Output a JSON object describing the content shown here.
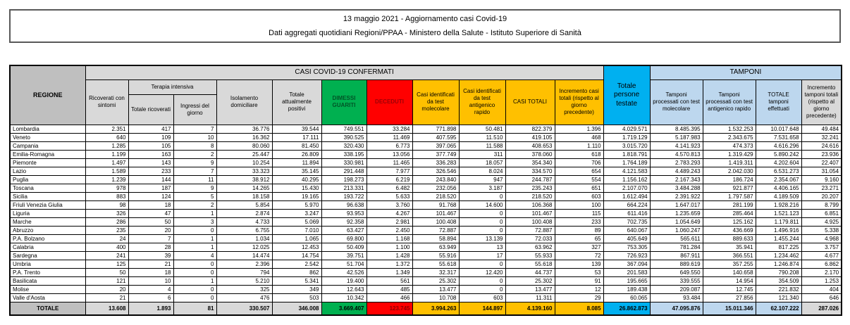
{
  "title": {
    "line1": "13 maggio 2021 - Aggiornamento casi Covid-19",
    "line2": "Dati aggregati quotidiani Regioni/PPAA - Ministero della Salute - Istituto Superiore di Sanità"
  },
  "colors": {
    "green": "#00B050",
    "red": "#FF0000",
    "amber": "#FFC000",
    "cyan": "#00B0F0",
    "blue_light": "#BDD7EE",
    "grey_dark": "#BFBFBF",
    "grey_light": "#D9D9D9"
  },
  "table": {
    "headers": {
      "regione": "REGIONE",
      "band_confermati": "CASI COVID-19 CONFERMATI",
      "band_tamponi": "TAMPONI",
      "ricoverati": "Ricoverati con sintomi",
      "terapia_intensiva": "Terapia intensiva",
      "totale_ricoverati": "Totale ricoverati",
      "ingressi_giorno": "Ingressi del giorno",
      "isolamento": "Isolamento domiciliare",
      "attualmente_positivi": "Totale attualmente positivi",
      "dimessi_guariti": "DIMESSI GUARITI",
      "deceduti": "DECEDUTI",
      "casi_molecolare": "Casi identificati da test molecolare",
      "casi_antigenico": "Casi identificati da test antigenico rapido",
      "casi_totali": "CASI TOTALI",
      "incremento_casi": "Incremento casi totali (rispetto al giorno precedente)",
      "persone_testate": "Totale persone testate",
      "tamponi_molecolare": "Tamponi processati con test molecolare",
      "tamponi_antigenico": "Tamponi processati con test antigenico rapido",
      "totale_tamponi": "TOTALE tamponi effettuati",
      "incremento_tamponi": "Incremento tamponi totali (rispetto al giorno precedente)"
    },
    "rows": [
      {
        "region": "Lombardia",
        "values": [
          "2.351",
          "417",
          "7",
          "36.776",
          "39.544",
          "749.551",
          "33.284",
          "771.898",
          "50.481",
          "822.379",
          "1.396",
          "4.029.571",
          "8.485.395",
          "1.532.253",
          "10.017.648",
          "49.484"
        ]
      },
      {
        "region": "Veneto",
        "values": [
          "640",
          "109",
          "10",
          "16.362",
          "17.111",
          "390.525",
          "11.469",
          "407.595",
          "11.510",
          "419.105",
          "468",
          "1.719.129",
          "5.187.983",
          "2.343.675",
          "7.531.658",
          "32.241"
        ]
      },
      {
        "region": "Campania",
        "values": [
          "1.285",
          "105",
          "8",
          "80.060",
          "81.450",
          "320.430",
          "6.773",
          "397.065",
          "11.588",
          "408.653",
          "1.110",
          "3.015.720",
          "4.141.923",
          "474.373",
          "4.616.296",
          "24.616"
        ]
      },
      {
        "region": "Emilia-Romagna",
        "values": [
          "1.199",
          "163",
          "2",
          "25.447",
          "26.809",
          "338.195",
          "13.056",
          "377.749",
          "311",
          "378.060",
          "618",
          "1.818.791",
          "4.570.813",
          "1.319.429",
          "5.890.242",
          "23.936"
        ]
      },
      {
        "region": "Piemonte",
        "values": [
          "1.497",
          "143",
          "9",
          "10.254",
          "11.894",
          "330.981",
          "11.465",
          "336.283",
          "18.057",
          "354.340",
          "706",
          "1.764.189",
          "2.783.293",
          "1.419.311",
          "4.202.604",
          "22.407"
        ]
      },
      {
        "region": "Lazio",
        "values": [
          "1.589",
          "233",
          "7",
          "33.323",
          "35.145",
          "291.448",
          "7.977",
          "326.546",
          "8.024",
          "334.570",
          "654",
          "4.121.583",
          "4.489.243",
          "2.042.030",
          "6.531.273",
          "31.054"
        ]
      },
      {
        "region": "Puglia",
        "values": [
          "1.239",
          "144",
          "11",
          "38.912",
          "40.295",
          "198.273",
          "6.219",
          "243.840",
          "947",
          "244.787",
          "554",
          "1.156.162",
          "2.167.343",
          "186.724",
          "2.354.067",
          "9.160"
        ]
      },
      {
        "region": "Toscana",
        "values": [
          "978",
          "187",
          "9",
          "14.265",
          "15.430",
          "213.331",
          "6.482",
          "232.056",
          "3.187",
          "235.243",
          "651",
          "2.107.070",
          "3.484.288",
          "921.877",
          "4.406.165",
          "23.271"
        ]
      },
      {
        "region": "Sicilia",
        "values": [
          "883",
          "124",
          "5",
          "18.158",
          "19.165",
          "193.722",
          "5.633",
          "218.520",
          "0",
          "218.520",
          "603",
          "1.612.494",
          "2.391.922",
          "1.797.587",
          "4.189.509",
          "20.207"
        ]
      },
      {
        "region": "Friuli Venezia Giulia",
        "values": [
          "98",
          "18",
          "2",
          "5.854",
          "5.970",
          "96.638",
          "3.760",
          "91.768",
          "14.600",
          "106.368",
          "100",
          "664.224",
          "1.647.017",
          "281.199",
          "1.928.216",
          "8.799"
        ]
      },
      {
        "region": "Liguria",
        "values": [
          "326",
          "47",
          "1",
          "2.874",
          "3.247",
          "93.953",
          "4.267",
          "101.467",
          "0",
          "101.467",
          "115",
          "611.416",
          "1.235.659",
          "285.464",
          "1.521.123",
          "6.851"
        ]
      },
      {
        "region": "Marche",
        "values": [
          "286",
          "50",
          "3",
          "4.733",
          "5.069",
          "92.358",
          "2.981",
          "100.408",
          "0",
          "100.408",
          "233",
          "702.735",
          "1.054.649",
          "125.162",
          "1.179.811",
          "4.925"
        ]
      },
      {
        "region": "Abruzzo",
        "values": [
          "235",
          "20",
          "0",
          "6.755",
          "7.010",
          "63.427",
          "2.450",
          "72.887",
          "0",
          "72.887",
          "89",
          "640.067",
          "1.060.247",
          "436.669",
          "1.496.916",
          "5.338"
        ]
      },
      {
        "region": "P.A. Bolzano",
        "values": [
          "24",
          "7",
          "1",
          "1.034",
          "1.065",
          "69.800",
          "1.168",
          "58.894",
          "13.139",
          "72.033",
          "65",
          "405.649",
          "565.611",
          "889.633",
          "1.455.244",
          "4.968"
        ]
      },
      {
        "region": "Calabria",
        "values": [
          "400",
          "28",
          "1",
          "12.025",
          "12.453",
          "50.409",
          "1.100",
          "63.949",
          "13",
          "63.962",
          "327",
          "753.305",
          "781.284",
          "35.941",
          "817.225",
          "3.757"
        ]
      },
      {
        "region": "Sardegna",
        "values": [
          "241",
          "39",
          "4",
          "14.474",
          "14.754",
          "39.751",
          "1.428",
          "55.916",
          "17",
          "55.933",
          "72",
          "726.923",
          "867.911",
          "366.551",
          "1.234.462",
          "4.677"
        ]
      },
      {
        "region": "Umbria",
        "values": [
          "125",
          "21",
          "0",
          "2.396",
          "2.542",
          "51.704",
          "1.372",
          "55.618",
          "0",
          "55.618",
          "139",
          "367.094",
          "889.619",
          "357.255",
          "1.246.874",
          "6.862"
        ]
      },
      {
        "region": "P.A. Trento",
        "values": [
          "50",
          "18",
          "0",
          "794",
          "862",
          "42.526",
          "1.349",
          "32.317",
          "12.420",
          "44.737",
          "53",
          "201.583",
          "649.550",
          "140.658",
          "790.208",
          "2.170"
        ]
      },
      {
        "region": "Basilicata",
        "values": [
          "121",
          "10",
          "1",
          "5.210",
          "5.341",
          "19.400",
          "561",
          "25.302",
          "0",
          "25.302",
          "91",
          "195.665",
          "339.555",
          "14.954",
          "354.509",
          "1.253"
        ]
      },
      {
        "region": "Molise",
        "values": [
          "20",
          "4",
          "0",
          "325",
          "349",
          "12.643",
          "485",
          "13.477",
          "0",
          "13.477",
          "12",
          "189.438",
          "209.087",
          "12.745",
          "221.832",
          "404"
        ]
      },
      {
        "region": "Valle d'Aosta",
        "values": [
          "21",
          "6",
          "0",
          "476",
          "503",
          "10.342",
          "466",
          "10.708",
          "603",
          "11.311",
          "29",
          "60.065",
          "93.484",
          "27.856",
          "121.340",
          "646"
        ]
      }
    ],
    "total": {
      "label": "TOTALE",
      "values": [
        "13.608",
        "1.893",
        "81",
        "330.507",
        "346.008",
        "3.669.407",
        "123.745",
        "3.994.263",
        "144.897",
        "4.139.160",
        "8.085",
        "26.862.873",
        "47.095.876",
        "15.011.346",
        "62.107.222",
        "287.026"
      ]
    }
  }
}
